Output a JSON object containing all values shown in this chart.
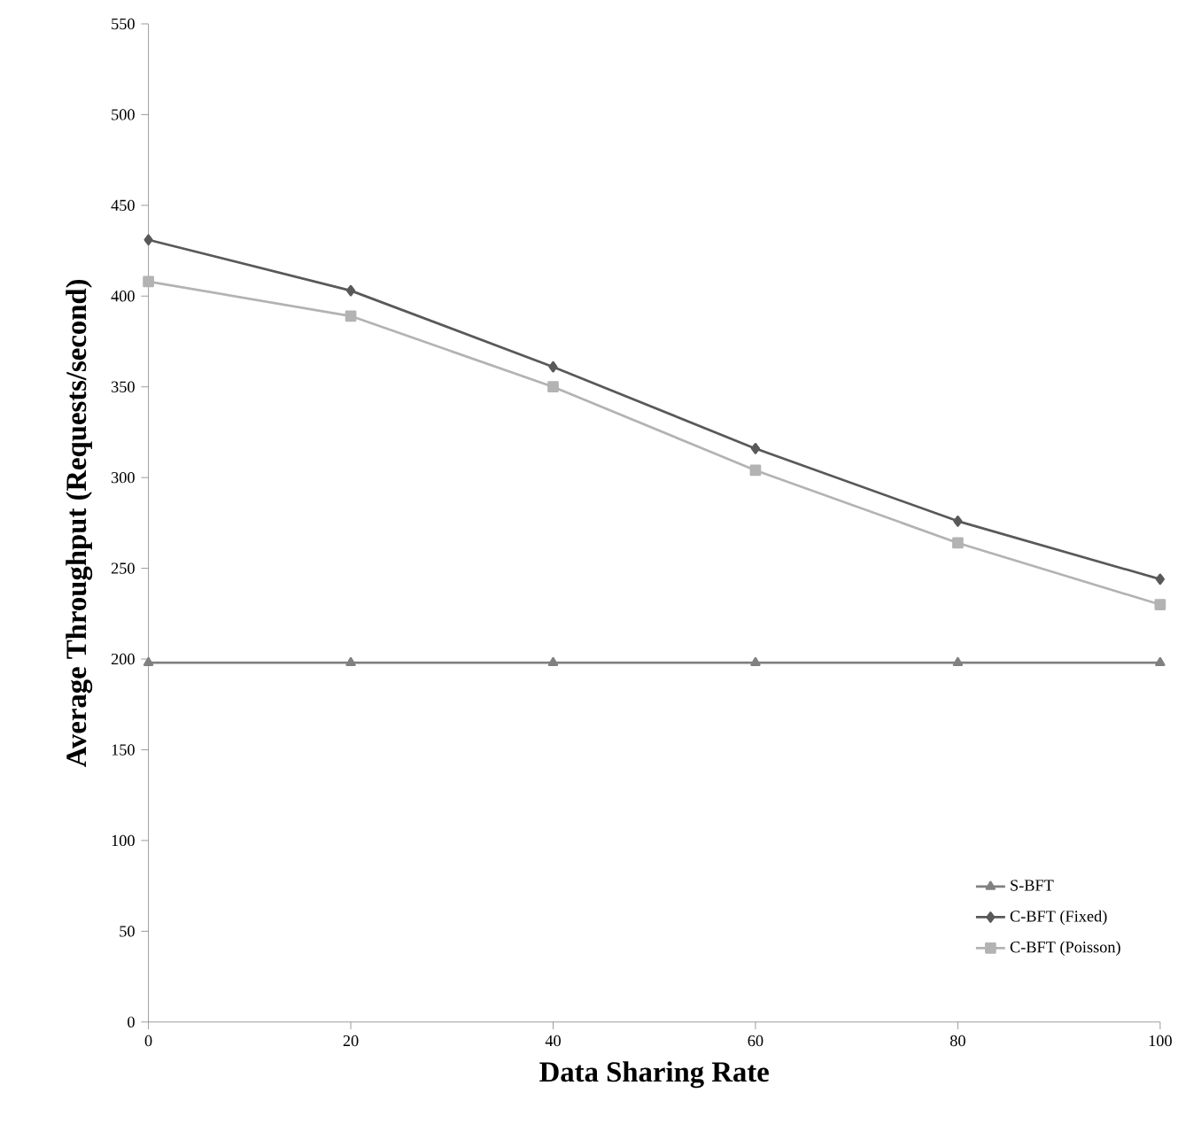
{
  "chart_data": {
    "type": "line",
    "xlabel": "Data Sharing Rate",
    "ylabel": "Average Throughput (Requests/second)",
    "x": [
      0,
      20,
      40,
      60,
      80,
      100
    ],
    "series": [
      {
        "name": "S-BFT",
        "color": "#808080",
        "marker": "triangle",
        "values": [
          198,
          198,
          198,
          198,
          198,
          198
        ]
      },
      {
        "name": "C-BFT (Fixed)",
        "color": "#595959",
        "marker": "diamond",
        "values": [
          431,
          403,
          361,
          316,
          276,
          244
        ]
      },
      {
        "name": "C-BFT (Poisson)",
        "color": "#b3b3b3",
        "marker": "square",
        "values": [
          408,
          389,
          350,
          304,
          264,
          230
        ]
      }
    ],
    "xlim": [
      0,
      100
    ],
    "xticks": [
      0,
      20,
      40,
      60,
      80,
      100
    ],
    "ylim": [
      0,
      550
    ],
    "yticks": [
      0,
      50,
      100,
      150,
      200,
      250,
      300,
      350,
      400,
      450,
      500,
      550
    ],
    "grid": false,
    "legend": "bottom right",
    "line_style": "solid"
  }
}
